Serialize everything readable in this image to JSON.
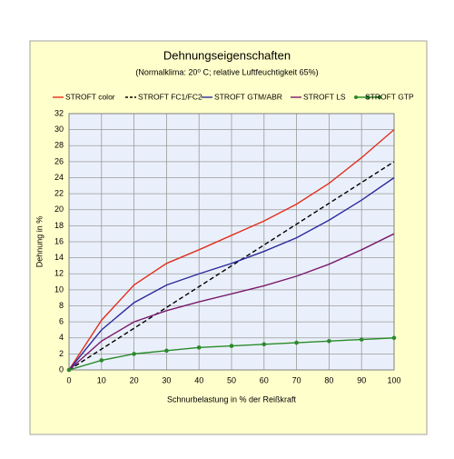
{
  "chart_data": {
    "type": "line",
    "title": "Dehnungseigenschaften",
    "subtitle": "(Normalklima: 20⁰ C;  relative Luftfeuchtigkeit 65%)",
    "xlabel": "Schnurbelastung in % der Reißkraft",
    "ylabel": "Dehnung in %",
    "x": [
      0,
      10,
      20,
      30,
      40,
      50,
      60,
      70,
      80,
      90,
      100
    ],
    "xlim": [
      0,
      100
    ],
    "xticks": [
      0,
      10,
      20,
      30,
      40,
      50,
      60,
      70,
      80,
      90,
      100
    ],
    "ylim": [
      0,
      32
    ],
    "yticks": [
      0,
      2,
      4,
      6,
      8,
      10,
      12,
      14,
      16,
      18,
      20,
      22,
      24,
      26,
      28,
      30,
      32
    ],
    "grid": true,
    "series": [
      {
        "name": "STROFT color",
        "color": "#e0301e",
        "values": [
          0,
          6.2,
          10.6,
          13.3,
          15,
          16.8,
          18.6,
          20.7,
          23.3,
          26.5,
          30
        ]
      },
      {
        "name": "STROFT FC1/FC2",
        "color": "#000000",
        "dashed": true,
        "values": [
          0,
          2.6,
          5.2,
          7.8,
          10.4,
          13,
          15.6,
          18.2,
          20.8,
          23.4,
          26
        ]
      },
      {
        "name": "STROFT GTM/ABR",
        "color": "#2b2b9b",
        "values": [
          0,
          5,
          8.4,
          10.6,
          12,
          13.3,
          14.8,
          16.5,
          18.7,
          21.2,
          24
        ]
      },
      {
        "name": "STROFT LS",
        "color": "#7a1a6c",
        "values": [
          0,
          3.6,
          6,
          7.4,
          8.5,
          9.5,
          10.5,
          11.7,
          13.2,
          15,
          17
        ]
      },
      {
        "name": "STROFT GTP",
        "color": "#2a8a2a",
        "markers": true,
        "values": [
          0,
          1.2,
          2,
          2.4,
          2.8,
          3,
          3.2,
          3.4,
          3.6,
          3.8,
          4
        ]
      }
    ]
  }
}
